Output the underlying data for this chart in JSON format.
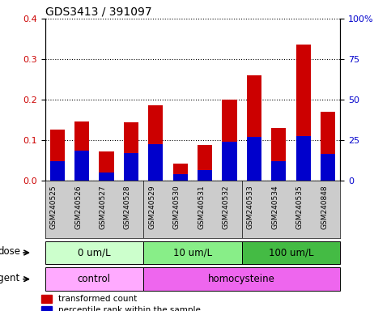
{
  "title": "GDS3413 / 391097",
  "samples": [
    "GSM240525",
    "GSM240526",
    "GSM240527",
    "GSM240528",
    "GSM240529",
    "GSM240530",
    "GSM240531",
    "GSM240532",
    "GSM240533",
    "GSM240534",
    "GSM240535",
    "GSM240848"
  ],
  "red_values": [
    0.125,
    0.145,
    0.072,
    0.143,
    0.185,
    0.042,
    0.088,
    0.2,
    0.26,
    0.13,
    0.335,
    0.17
  ],
  "blue_values": [
    0.047,
    0.073,
    0.02,
    0.068,
    0.09,
    0.015,
    0.025,
    0.095,
    0.108,
    0.048,
    0.11,
    0.065
  ],
  "ylim_left": [
    0,
    0.4
  ],
  "ylim_right": [
    0,
    100
  ],
  "yticks_left": [
    0,
    0.1,
    0.2,
    0.3,
    0.4
  ],
  "yticks_right": [
    0,
    25,
    50,
    75,
    100
  ],
  "ytick_labels_right": [
    "0",
    "25",
    "50",
    "75",
    "100%"
  ],
  "dose_groups": [
    {
      "label": "0 um/L",
      "start": 0,
      "end": 4
    },
    {
      "label": "10 um/L",
      "start": 4,
      "end": 8
    },
    {
      "label": "100 um/L",
      "start": 8,
      "end": 12
    }
  ],
  "dose_colors": [
    "#ccffcc",
    "#88ee88",
    "#44bb44"
  ],
  "agent_groups": [
    {
      "label": "control",
      "start": 0,
      "end": 4
    },
    {
      "label": "homocysteine",
      "start": 4,
      "end": 12
    }
  ],
  "agent_colors": [
    "#ffaaff",
    "#ee66ee"
  ],
  "dose_label": "dose",
  "agent_label": "agent",
  "legend_red": "transformed count",
  "legend_blue": "percentile rank within the sample",
  "bar_color_red": "#cc0000",
  "bar_color_blue": "#0000cc",
  "bar_width": 0.6,
  "tick_label_color_left": "#cc0000",
  "tick_label_color_right": "#0000cc",
  "background_color": "#ffffff",
  "xticklabel_bg": "#cccccc"
}
